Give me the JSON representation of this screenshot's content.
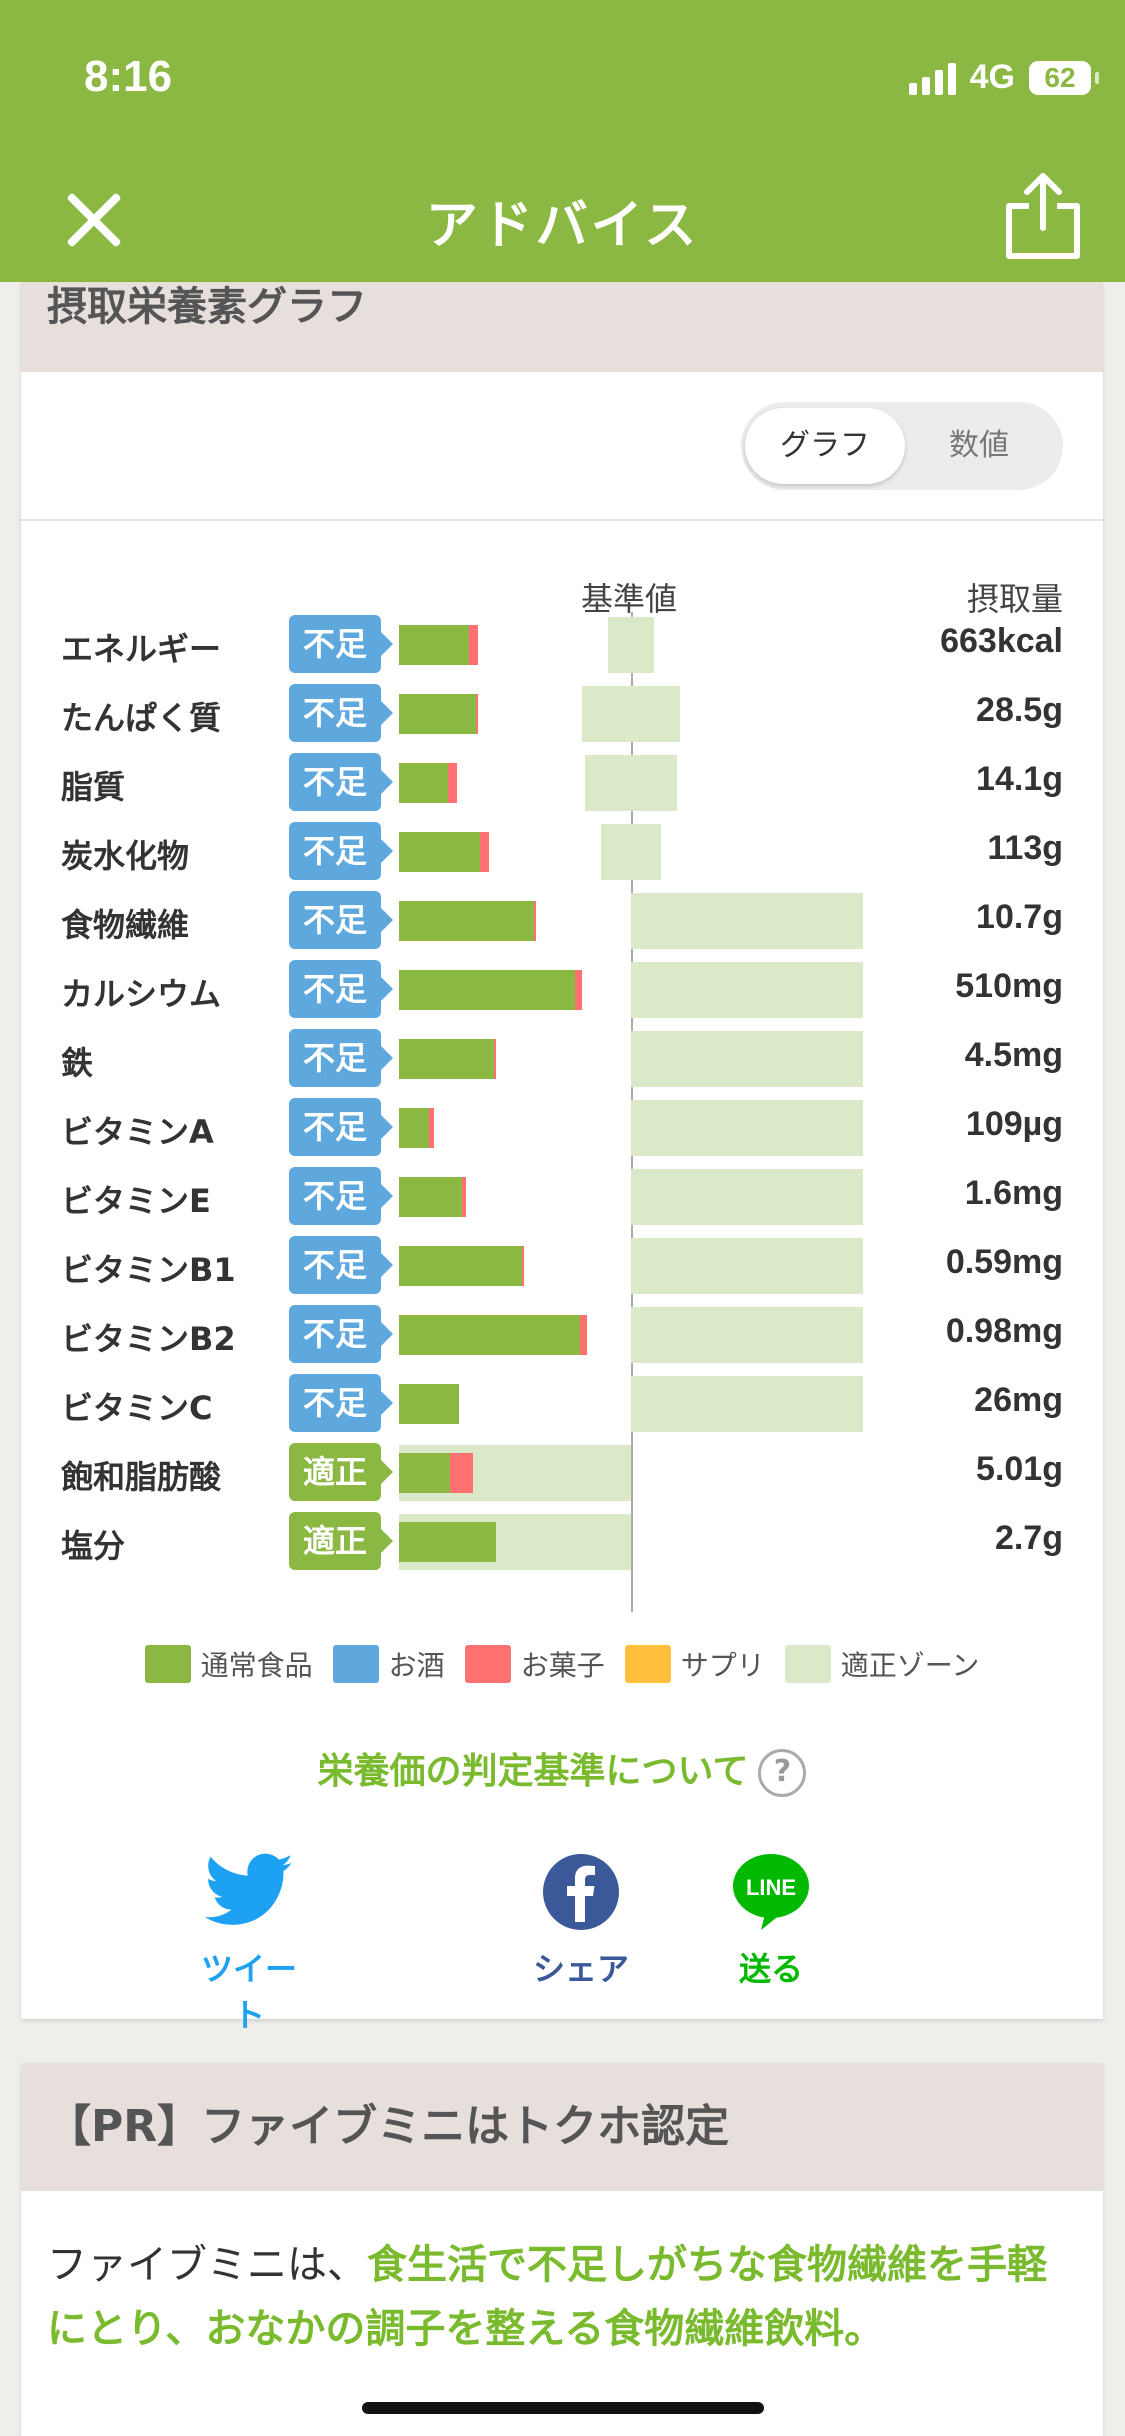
{
  "status": {
    "time": "8:16",
    "network": "4G",
    "battery": "62"
  },
  "header": {
    "title": "アドバイス",
    "close_icon": "close-icon",
    "share_icon": "share-icon"
  },
  "graph_card": {
    "title": "摂取栄養素グラフ",
    "toggle": {
      "graph": "グラフ",
      "values": "数値",
      "selected": "グラフ"
    },
    "reference_label": "基準値",
    "intake_label": "摂取量"
  },
  "chart_data": {
    "type": "bar",
    "title": "摂取栄養素グラフ",
    "reference_label": "基準値",
    "value_header": "摂取量",
    "grid": false,
    "legend_position": "bottom",
    "colors": {
      "normal_food": "#8ab842",
      "alcohol": "#5ea8dd",
      "snacks": "#ff7070",
      "supplement": "#ffbe3c",
      "zone": "#dbe9c8"
    },
    "legend": [
      "通常食品",
      "お酒",
      "お菓子",
      "サプリ",
      "適正ゾーン"
    ],
    "rows": [
      {
        "name": "エネルギー",
        "status": "不足",
        "value": "663kcal",
        "normal_pct": 30,
        "snack_pct": 4,
        "zone": [
          90,
          110
        ]
      },
      {
        "name": "たんぱく質",
        "status": "不足",
        "value": "28.5g",
        "normal_pct": 33,
        "snack_pct": 1,
        "zone": [
          79,
          121
        ]
      },
      {
        "name": "脂質",
        "status": "不足",
        "value": "14.1g",
        "normal_pct": 21,
        "snack_pct": 4,
        "zone": [
          80,
          120
        ]
      },
      {
        "name": "炭水化物",
        "status": "不足",
        "value": "113g",
        "normal_pct": 35,
        "snack_pct": 4,
        "zone": [
          87,
          113
        ]
      },
      {
        "name": "食物繊維",
        "status": "不足",
        "value": "10.7g",
        "normal_pct": 58,
        "snack_pct": 1,
        "zone": [
          100,
          200
        ]
      },
      {
        "name": "カルシウム",
        "status": "不足",
        "value": "510mg",
        "normal_pct": 76,
        "snack_pct": 3,
        "zone": [
          100,
          200
        ]
      },
      {
        "name": "鉄",
        "status": "不足",
        "value": "4.5mg",
        "normal_pct": 41,
        "snack_pct": 1,
        "zone": [
          100,
          200
        ]
      },
      {
        "name": "ビタミンA",
        "status": "不足",
        "value": "109µg",
        "normal_pct": 13,
        "snack_pct": 2,
        "zone": [
          100,
          200
        ]
      },
      {
        "name": "ビタミンE",
        "status": "不足",
        "value": "1.6mg",
        "normal_pct": 27,
        "snack_pct": 2,
        "zone": [
          100,
          200
        ]
      },
      {
        "name": "ビタミンB1",
        "status": "不足",
        "value": "0.59mg",
        "normal_pct": 53,
        "snack_pct": 1,
        "zone": [
          100,
          200
        ]
      },
      {
        "name": "ビタミンB2",
        "status": "不足",
        "value": "0.98mg",
        "normal_pct": 78,
        "snack_pct": 3,
        "zone": [
          100,
          200
        ]
      },
      {
        "name": "ビタミンC",
        "status": "不足",
        "value": "26mg",
        "normal_pct": 26,
        "snack_pct": 0,
        "zone": [
          100,
          200
        ]
      },
      {
        "name": "飽和脂肪酸",
        "status": "適正",
        "value": "5.01g",
        "normal_pct": 22,
        "snack_pct": 10,
        "zone": [
          0,
          100
        ]
      },
      {
        "name": "塩分",
        "status": "適正",
        "value": "2.7g",
        "normal_pct": 42,
        "snack_pct": 0,
        "zone": [
          0,
          100
        ]
      }
    ]
  },
  "about_link": "栄養価の判定基準について",
  "social": [
    {
      "label": "ツイート",
      "icon": "twitter-icon",
      "color": "#1da1f2"
    },
    {
      "label": "シェア",
      "icon": "facebook-icon",
      "color": "#3b5998"
    },
    {
      "label": "送る",
      "icon": "line-icon",
      "color": "#00b900",
      "mark": "LINE"
    }
  ],
  "pr_card": {
    "title": "【PR】ファイブミニはトクホ認定",
    "text_prefix": "ファイブミニは、",
    "text_highlight": "食生活で不足しがちな食物繊維を手軽にとり、おなかの調子を整える食物繊維飲料。"
  }
}
